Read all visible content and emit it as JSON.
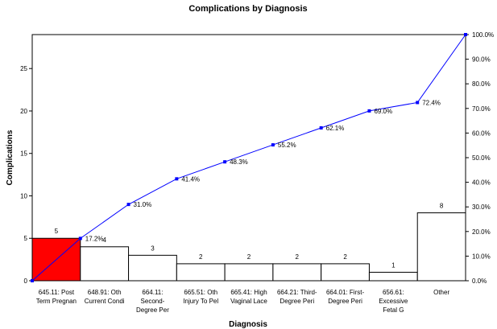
{
  "chart_data": {
    "type": "bar",
    "title": "Complications by Diagnosis",
    "xlabel": "Diagnosis",
    "ylabel": "Complications",
    "categories": [
      [
        "645.11: Post",
        "Term Pregnan"
      ],
      [
        "648.91: Oth",
        "Current Condi"
      ],
      [
        "664.11:",
        "Second-",
        "Degree Per"
      ],
      [
        "665.51: Oth",
        "Injury To Pel"
      ],
      [
        "665.41: High",
        "Vaginal Lace"
      ],
      [
        "664.21: Third-",
        "Degree Peri"
      ],
      [
        "664.01: First-",
        "Degree Peri"
      ],
      [
        "656.61:",
        "Excessive",
        "Fetal G"
      ],
      [
        "Other"
      ]
    ],
    "values": [
      5,
      4,
      3,
      2,
      2,
      2,
      2,
      1,
      8
    ],
    "bar_labels": [
      "5",
      "4",
      "3",
      "2",
      "2",
      "2",
      "2",
      "1",
      "8"
    ],
    "bar_colors": [
      "#ff0000",
      "#ffffff",
      "#ffffff",
      "#ffffff",
      "#ffffff",
      "#ffffff",
      "#ffffff",
      "#ffffff",
      "#ffffff"
    ],
    "ylim": [
      0,
      29
    ],
    "yticks": [
      0,
      5,
      10,
      15,
      20,
      25
    ],
    "cumulative_line": {
      "color": "#0000ff",
      "x_positions": [
        0,
        1,
        2,
        3,
        4,
        5,
        6,
        7,
        8,
        9
      ],
      "values": [
        0,
        17.2,
        31.0,
        41.4,
        48.3,
        55.2,
        62.1,
        69.0,
        72.4,
        100.0
      ],
      "labels": [
        "",
        "17.2%",
        "31.0%",
        "41.4%",
        "48.3%",
        "55.2%",
        "62.1%",
        "69.0%",
        "72.4%",
        ""
      ]
    },
    "y2lim": [
      0,
      100
    ],
    "y2ticks": [
      "0.0%",
      "10.0%",
      "20.0%",
      "30.0%",
      "40.0%",
      "50.0%",
      "60.0%",
      "70.0%",
      "80.0%",
      "90.0%",
      "100.0%"
    ],
    "grid": false,
    "legend": "none"
  }
}
